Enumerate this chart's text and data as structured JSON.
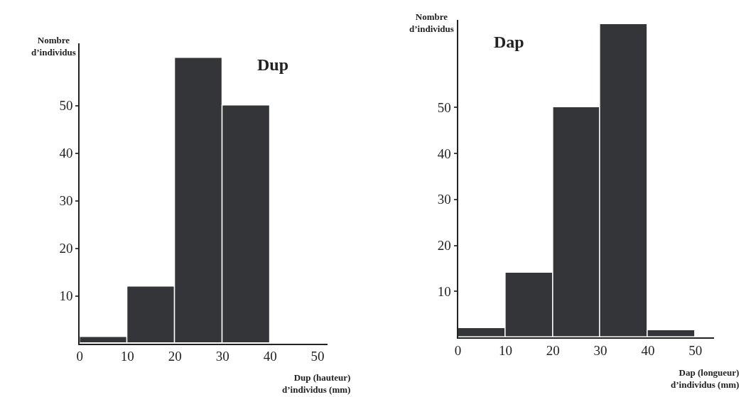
{
  "chart_data": [
    {
      "type": "histogram",
      "title": "Dup",
      "ylabel": "Nombre\nd’individus",
      "xlabel": "Dup (hauteur)\nd’individus (mm)",
      "bins": [
        0,
        10,
        20,
        30,
        40,
        50
      ],
      "values": [
        1.3,
        12,
        60,
        50,
        0
      ],
      "color": "#333538",
      "xlim": [
        0,
        52
      ],
      "ylim": [
        0,
        63
      ],
      "xticks": [
        0,
        10,
        20,
        30,
        40,
        50
      ],
      "yticks": [
        10,
        20,
        30,
        40,
        50
      ],
      "legend": false
    },
    {
      "type": "histogram",
      "title": "Dap",
      "ylabel": "Nombre\nd’individus",
      "xlabel": "Dap (longueur)\nd’individus (mm)",
      "bins": [
        0,
        10,
        20,
        30,
        40,
        50
      ],
      "values": [
        2,
        14,
        50,
        68,
        1.6
      ],
      "color": "#333538",
      "xlim": [
        0,
        54
      ],
      "ylim": [
        0,
        69
      ],
      "xticks": [
        0,
        10,
        20,
        30,
        40,
        50
      ],
      "yticks": [
        10,
        20,
        30,
        40,
        50
      ],
      "legend": false
    }
  ]
}
